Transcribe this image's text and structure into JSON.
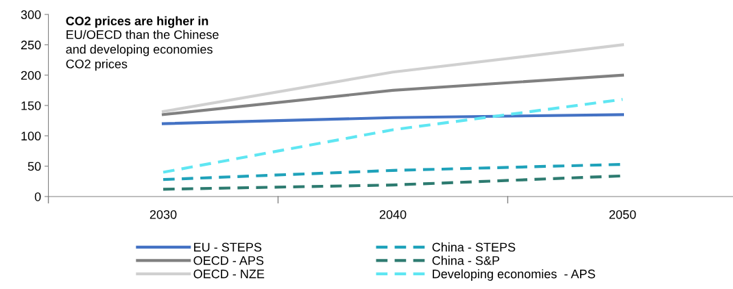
{
  "chart_data": {
    "type": "line",
    "title": "CO2 prices are higher in",
    "annotations": [
      "EU/OECD than the Chinese\nand developing economies\nCO2 prices"
    ],
    "categories": [
      "2030",
      "2040",
      "2050"
    ],
    "series": [
      {
        "name": "EU - STEPS",
        "color": "#4472c4",
        "values": [
          120,
          130,
          135
        ],
        "line_style": "solid"
      },
      {
        "name": "OECD - APS",
        "color": "#808080",
        "values": [
          135,
          175,
          200
        ],
        "line_style": "solid"
      },
      {
        "name": "OECD - NZE",
        "color": "#d0d0d0",
        "values": [
          140,
          205,
          250
        ],
        "line_style": "solid"
      },
      {
        "name": "China - STEPS",
        "color": "#1fa2ba",
        "values": [
          28,
          43,
          53
        ],
        "line_style": "dashed"
      },
      {
        "name": "China - S&P",
        "color": "#2d7b70",
        "values": [
          12,
          19,
          34
        ],
        "line_style": "dashed"
      },
      {
        "name": "Developing economies  - APS",
        "color": "#5fe6f2",
        "values": [
          40,
          110,
          160
        ],
        "line_style": "dashed"
      }
    ],
    "ylim": [
      0,
      300
    ],
    "yticks": [
      0,
      50,
      100,
      150,
      200,
      250,
      300
    ],
    "grid": false,
    "legend": "bottom",
    "marker": "none"
  }
}
